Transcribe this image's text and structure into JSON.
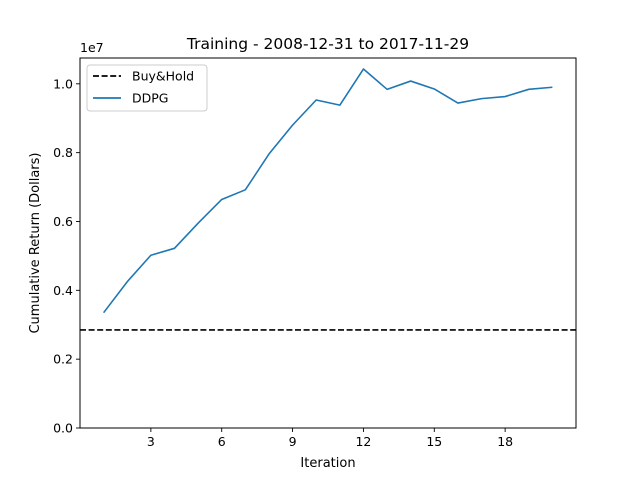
{
  "chart_data": {
    "type": "line",
    "title": "Training - 2008-12-31 to 2017-11-29",
    "xlabel": "Iteration",
    "ylabel": "Cumulative Return (Dollars)",
    "y_offset_label": "1e7",
    "xlim": [
      0,
      21
    ],
    "ylim": [
      0,
      1.075
    ],
    "y_unit_multiplier": 10000000,
    "xticks": [
      3,
      6,
      9,
      12,
      15,
      18
    ],
    "yticks": [
      0.0,
      0.2,
      0.4,
      0.6,
      0.8,
      1.0
    ],
    "ytick_labels": [
      "0.0",
      "0.2",
      "0.4",
      "0.6",
      "0.8",
      "1.0"
    ],
    "grid": false,
    "legend_position": "top-left",
    "series": [
      {
        "name": "Buy&Hold",
        "style": "dashed",
        "color": "#000000",
        "x": [
          0,
          21
        ],
        "y": [
          0.285,
          0.285
        ]
      },
      {
        "name": "DDPG",
        "style": "solid",
        "color": "#1f77b4",
        "x": [
          1,
          2,
          3,
          4,
          5,
          6,
          7,
          8,
          9,
          10,
          11,
          12,
          13,
          14,
          15,
          16,
          17,
          18,
          19,
          20
        ],
        "y": [
          0.335,
          0.425,
          0.502,
          0.522,
          0.595,
          0.664,
          0.692,
          0.796,
          0.88,
          0.953,
          0.938,
          1.043,
          0.984,
          1.008,
          0.985,
          0.944,
          0.957,
          0.963,
          0.984,
          0.99
        ]
      }
    ]
  }
}
